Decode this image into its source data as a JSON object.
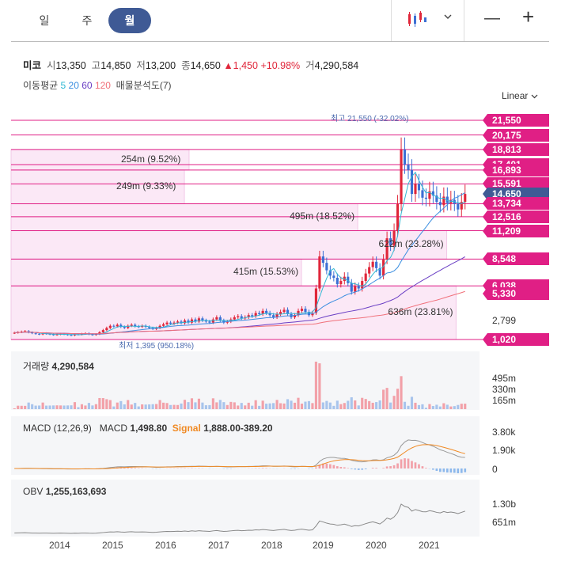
{
  "tabs": [
    {
      "label": "일"
    },
    {
      "label": "주"
    },
    {
      "label": "월"
    }
  ],
  "toolbar": {
    "minus": "—",
    "plus": "+"
  },
  "quote": {
    "name": "미코",
    "open_label": "시",
    "open": "13,350",
    "high_label": "고",
    "high": "14,850",
    "low_label": "저",
    "low": "13,200",
    "close_label": "종",
    "close": "14,650",
    "change": "▲1,450",
    "change_pct": "+10.98%",
    "volume_label": "거",
    "volume": "4,290,584"
  },
  "ma": {
    "label": "이동평균",
    "p5": "5",
    "p20": "20",
    "p60": "60",
    "p120": "120",
    "vp": "매물분석도(7)",
    "colors": {
      "p5": "#31b8d4",
      "p20": "#3b8ee0",
      "p60": "#6a3fc4",
      "p120": "#f0707a"
    }
  },
  "scale": "Linear",
  "hi_lo": {
    "high": "최고 21,550 (-32.02%)",
    "low": "최저 1,395 (950.18%)"
  },
  "chart_data": {
    "type": "candlestick",
    "x_axis_years": [
      "2014",
      "2015",
      "2016",
      "2017",
      "2018",
      "2019",
      "2020",
      "2021"
    ],
    "price_labels": [
      "21,550",
      "20,175",
      "18,813",
      "17,401",
      "16,893",
      "15,591",
      "14,650",
      "13,734",
      "12,516",
      "11,209",
      "8,548",
      "6,038",
      "5,330",
      "2,799",
      "1,020"
    ],
    "price_axis_plain": [
      "2,799"
    ],
    "current_price": "14,650",
    "price_range": [
      1020,
      21550
    ],
    "hlines": [
      21550,
      20175,
      18813,
      17401,
      16893,
      15591,
      13734,
      12516,
      11209,
      8548,
      6038,
      1020
    ],
    "volume_profile": [
      {
        "label": "254m (9.52%)",
        "lo": 16893,
        "hi": 18813,
        "frac": 0.38
      },
      {
        "label": "249m (9.33%)",
        "lo": 13734,
        "hi": 16893,
        "frac": 0.37
      },
      {
        "label": "495m (18.52%)",
        "lo": 11209,
        "hi": 13734,
        "frac": 0.74
      },
      {
        "label": "622m (23.28%)",
        "lo": 8548,
        "hi": 11209,
        "frac": 0.93
      },
      {
        "label": "415m (15.53%)",
        "lo": 6038,
        "hi": 8548,
        "frac": 0.62
      },
      {
        "label": "636m (23.81%)",
        "lo": 1020,
        "hi": 6038,
        "frac": 0.95
      }
    ],
    "volume": {
      "label": "거래량",
      "value": "4,290,584",
      "axis": [
        "495m",
        "330m",
        "165m"
      ]
    },
    "macd": {
      "label": "MACD (12,26,9)",
      "macd_label": "MACD",
      "macd_value": "1,498.80",
      "signal_label": "Signal",
      "signal_value": "1,888.00",
      "hist_value": "-389.20",
      "axis": [
        "3.80k",
        "1.90k",
        "0"
      ]
    },
    "obv": {
      "label": "OBV",
      "value": "1,255,163,693",
      "axis": [
        "1.30b",
        "651m"
      ]
    },
    "monthly_close": [
      1650,
      1700,
      1750,
      1800,
      1680,
      1600,
      1550,
      1500,
      1600,
      1550,
      1500,
      1450,
      1500,
      1550,
      1500,
      1450,
      1400,
      1500,
      1480,
      1550,
      1600,
      1500,
      1450,
      1520,
      1700,
      1900,
      2100,
      2300,
      2250,
      2400,
      2200,
      2100,
      2300,
      2400,
      2250,
      2200,
      2300,
      2200,
      2100,
      2000,
      2100,
      2300,
      2450,
      2600,
      2500,
      2600,
      2700,
      2550,
      2800,
      2600,
      2900,
      2700,
      3000,
      2800,
      2700,
      2600,
      2900,
      3100,
      2800,
      2600,
      2700,
      2900,
      3100,
      3200,
      3000,
      3100,
      3300,
      3200,
      3500,
      3400,
      3700,
      3500,
      3300,
      3100,
      3400,
      3600,
      3800,
      3400,
      3100,
      3300,
      3700,
      3900,
      3600,
      3300,
      3500,
      5800,
      8800,
      8200,
      7500,
      7000,
      6800,
      6200,
      6500,
      6900,
      6300,
      5500,
      6000,
      5800,
      6500,
      7200,
      7800,
      8300,
      7700,
      7000,
      8500,
      10500,
      9800,
      11209,
      13734,
      18813,
      17401,
      16893,
      14650,
      15591,
      15000,
      14300,
      14200,
      14900,
      14500,
      13900,
      13600,
      14400,
      13800,
      14100,
      13734,
      13200,
      13900,
      14650
    ]
  }
}
